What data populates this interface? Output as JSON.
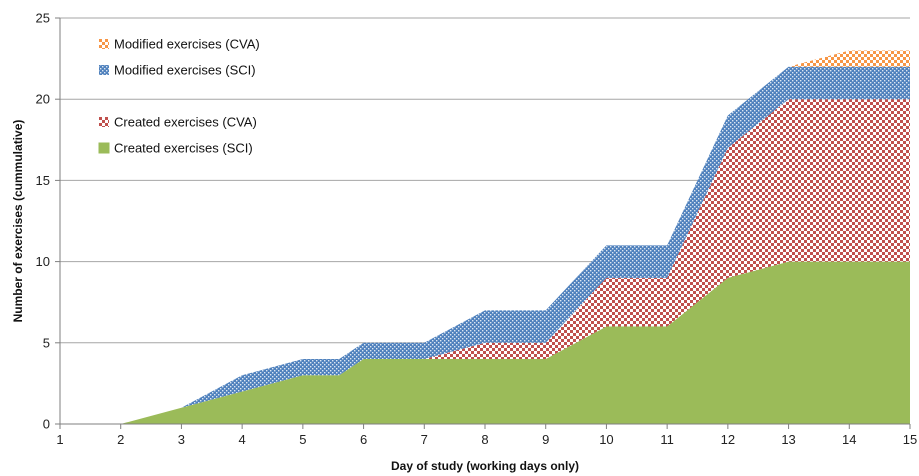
{
  "chart_data": {
    "type": "area",
    "stacked": true,
    "title": "",
    "xlabel": "Day of study (working days only)",
    "ylabel": "Number of exercises  (cummulative)",
    "x_ticks": [
      "1",
      "2",
      "3",
      "4",
      "5",
      "6",
      "7",
      "8",
      "9",
      "10",
      "11",
      "12",
      "13",
      "14",
      "15"
    ],
    "x": [
      2,
      3,
      4,
      5,
      5.6,
      6,
      7,
      8,
      9,
      10,
      11,
      12,
      13,
      14,
      15
    ],
    "ylim": [
      0,
      25
    ],
    "y_ticks": [
      0,
      5,
      10,
      15,
      20,
      25
    ],
    "grid": "horizontal",
    "legend_position": "top-left",
    "series": [
      {
        "name": "Created exercises (SCI)",
        "color": "#9bbb59",
        "pattern": "solid",
        "values": [
          0,
          1,
          2,
          3,
          3,
          4,
          4,
          4,
          4,
          6,
          6,
          9,
          10,
          10,
          10
        ]
      },
      {
        "name": "Created exercises (CVA)",
        "color": "#c0504d",
        "pattern": "checker",
        "values": [
          0,
          0,
          0,
          0,
          0,
          0,
          0,
          1,
          1,
          3,
          3,
          8,
          10,
          10,
          10
        ]
      },
      {
        "name": "Modified exercises (SCI)",
        "color": "#4f81bd",
        "pattern": "dots",
        "values": [
          0,
          0,
          1,
          1,
          1,
          1,
          1,
          2,
          2,
          2,
          2,
          2,
          2,
          2,
          2
        ]
      },
      {
        "name": "Modified exercises (CVA)",
        "color": "#f79646",
        "pattern": "checker",
        "values": [
          0,
          0,
          0,
          0,
          0,
          0,
          0,
          0,
          0,
          0,
          0,
          0,
          0,
          1,
          1
        ]
      }
    ],
    "legend_order": [
      "Modified exercises (CVA)",
      "Modified exercises (SCI)",
      "Created exercises (CVA)",
      "Created exercises (SCI)"
    ]
  }
}
